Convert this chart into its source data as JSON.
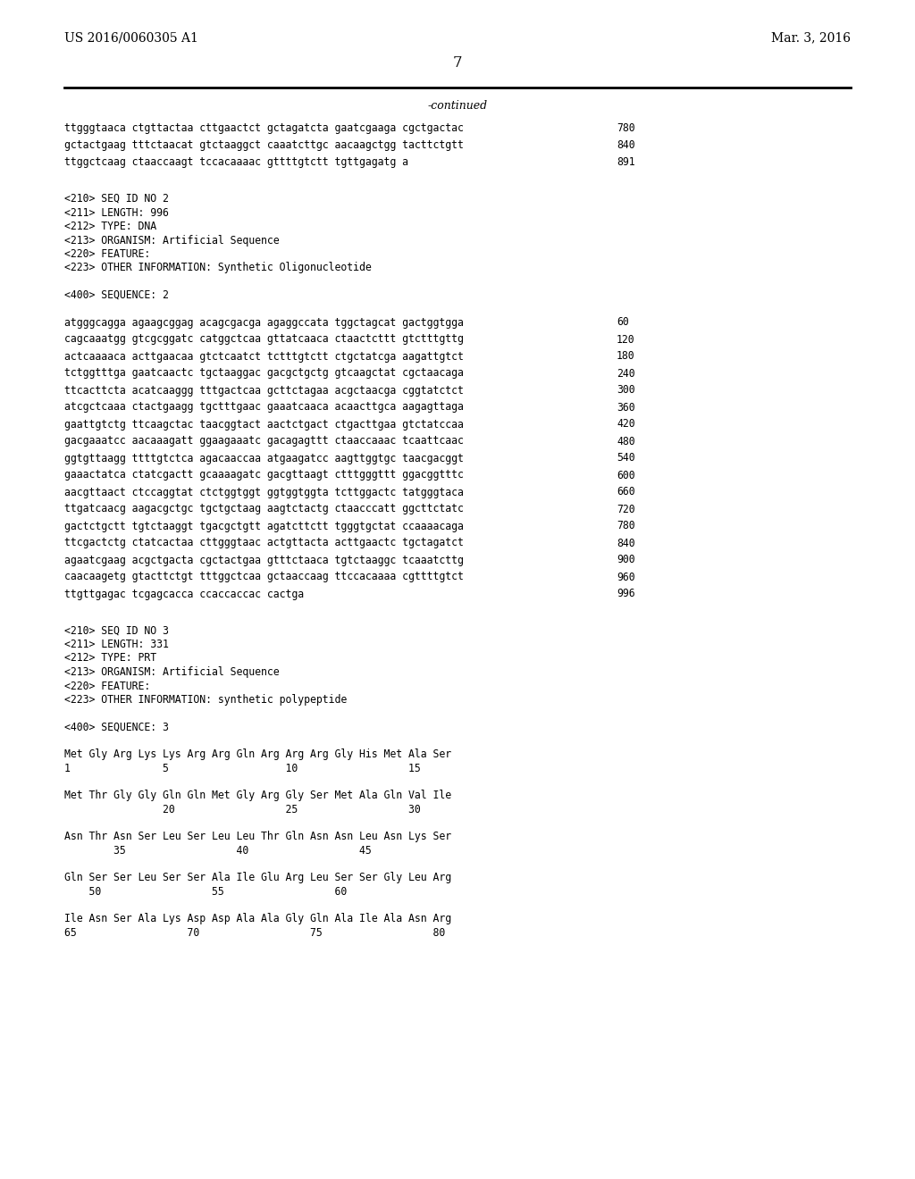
{
  "header_left": "US 2016/0060305 A1",
  "header_right": "Mar. 3, 2016",
  "page_number": "7",
  "continued_text": "-continued",
  "background_color": "#ffffff",
  "text_color": "#000000",
  "lines": [
    {
      "text": "ttgggtaaca ctgttactaa cttgaactct gctagatcta gaatcgaaga cgctgactac",
      "num": "780",
      "type": "seq"
    },
    {
      "text": "gctactgaag tttctaacat gtctaaggct caaatcttgc aacaagctgg tacttctgtt",
      "num": "840",
      "type": "seq"
    },
    {
      "text": "ttggctcaag ctaaccaagt tccacaaaac gttttgtctt tgttgagatg a",
      "num": "891",
      "type": "seq"
    },
    {
      "text": "",
      "num": "",
      "type": "blank2"
    },
    {
      "text": "<210> SEQ ID NO 2",
      "num": "",
      "type": "meta"
    },
    {
      "text": "<211> LENGTH: 996",
      "num": "",
      "type": "meta"
    },
    {
      "text": "<212> TYPE: DNA",
      "num": "",
      "type": "meta"
    },
    {
      "text": "<213> ORGANISM: Artificial Sequence",
      "num": "",
      "type": "meta"
    },
    {
      "text": "<220> FEATURE:",
      "num": "",
      "type": "meta"
    },
    {
      "text": "<223> OTHER INFORMATION: Synthetic Oligonucleotide",
      "num": "",
      "type": "meta"
    },
    {
      "text": "",
      "num": "",
      "type": "blank1"
    },
    {
      "text": "<400> SEQUENCE: 2",
      "num": "",
      "type": "meta"
    },
    {
      "text": "",
      "num": "",
      "type": "blank1"
    },
    {
      "text": "atgggcagga agaagcggag acagcgacga agaggccata tggctagcat gactggtgga",
      "num": "60",
      "type": "seq"
    },
    {
      "text": "cagcaaatgg gtcgcggatc catggctcaa gttatcaaca ctaactcttt gtctttgttg",
      "num": "120",
      "type": "seq"
    },
    {
      "text": "actcaaaaca acttgaacaa gtctcaatct tctttgtctt ctgctatcga aagattgtct",
      "num": "180",
      "type": "seq"
    },
    {
      "text": "tctggtttga gaatcaactc tgctaaggac gacgctgctg gtcaagctat cgctaacaga",
      "num": "240",
      "type": "seq"
    },
    {
      "text": "ttcacttcta acatcaaggg tttgactcaa gcttctagaa acgctaacga cggtatctct",
      "num": "300",
      "type": "seq"
    },
    {
      "text": "atcgctcaaa ctactgaagg tgctttgaac gaaatcaaca acaacttgca aagagttaga",
      "num": "360",
      "type": "seq"
    },
    {
      "text": "gaattgtctg ttcaagctac taacggtact aactctgact ctgacttgaa gtctatccaa",
      "num": "420",
      "type": "seq"
    },
    {
      "text": "gacgaaatcc aacaaagatt ggaagaaatc gacagagttt ctaaccaaac tcaattcaac",
      "num": "480",
      "type": "seq"
    },
    {
      "text": "ggtgttaagg ttttgtctca agacaaccaa atgaagatcc aagttggtgc taacgacggt",
      "num": "540",
      "type": "seq"
    },
    {
      "text": "gaaactatca ctatcgactt gcaaaagatc gacgttaagt ctttgggttt ggacggtttc",
      "num": "600",
      "type": "seq"
    },
    {
      "text": "aacgttaact ctccaggtat ctctggtggt ggtggtggta tcttggactc tatgggtaca",
      "num": "660",
      "type": "seq"
    },
    {
      "text": "ttgatcaacg aagacgctgc tgctgctaag aagtctactg ctaacccatt ggcttctatc",
      "num": "720",
      "type": "seq"
    },
    {
      "text": "gactctgctt tgtctaaggt tgacgctgtt agatcttctt tgggtgctat ccaaaacaga",
      "num": "780",
      "type": "seq"
    },
    {
      "text": "ttcgactctg ctatcactaa cttgggtaac actgttacta acttgaactc tgctagatct",
      "num": "840",
      "type": "seq"
    },
    {
      "text": "agaatcgaag acgctgacta cgctactgaa gtttctaaca tgtctaaggc tcaaatcttg",
      "num": "900",
      "type": "seq"
    },
    {
      "text": "caacaagetg gtacttctgt tttggctcaa gctaaccaag ttccacaaaa cgttttgtct",
      "num": "960",
      "type": "seq"
    },
    {
      "text": "ttgttgagac tcgagcacca ccaccaccac cactga",
      "num": "996",
      "type": "seq"
    },
    {
      "text": "",
      "num": "",
      "type": "blank2"
    },
    {
      "text": "<210> SEQ ID NO 3",
      "num": "",
      "type": "meta"
    },
    {
      "text": "<211> LENGTH: 331",
      "num": "",
      "type": "meta"
    },
    {
      "text": "<212> TYPE: PRT",
      "num": "",
      "type": "meta"
    },
    {
      "text": "<213> ORGANISM: Artificial Sequence",
      "num": "",
      "type": "meta"
    },
    {
      "text": "<220> FEATURE:",
      "num": "",
      "type": "meta"
    },
    {
      "text": "<223> OTHER INFORMATION: synthetic polypeptide",
      "num": "",
      "type": "meta"
    },
    {
      "text": "",
      "num": "",
      "type": "blank1"
    },
    {
      "text": "<400> SEQUENCE: 3",
      "num": "",
      "type": "meta"
    },
    {
      "text": "",
      "num": "",
      "type": "blank1"
    },
    {
      "text": "Met Gly Arg Lys Lys Arg Arg Gln Arg Arg Arg Gly His Met Ala Ser",
      "num": "",
      "type": "aa"
    },
    {
      "text": "1               5                   10                  15",
      "num": "",
      "type": "aapos"
    },
    {
      "text": "",
      "num": "",
      "type": "blank1"
    },
    {
      "text": "Met Thr Gly Gly Gln Gln Met Gly Arg Gly Ser Met Ala Gln Val Ile",
      "num": "",
      "type": "aa"
    },
    {
      "text": "                20                  25                  30",
      "num": "",
      "type": "aapos"
    },
    {
      "text": "",
      "num": "",
      "type": "blank1"
    },
    {
      "text": "Asn Thr Asn Ser Leu Ser Leu Leu Thr Gln Asn Asn Leu Asn Lys Ser",
      "num": "",
      "type": "aa"
    },
    {
      "text": "        35                  40                  45",
      "num": "",
      "type": "aapos"
    },
    {
      "text": "",
      "num": "",
      "type": "blank1"
    },
    {
      "text": "Gln Ser Ser Leu Ser Ser Ala Ile Glu Arg Leu Ser Ser Gly Leu Arg",
      "num": "",
      "type": "aa"
    },
    {
      "text": "    50                  55                  60",
      "num": "",
      "type": "aapos"
    },
    {
      "text": "",
      "num": "",
      "type": "blank1"
    },
    {
      "text": "Ile Asn Ser Ala Lys Asp Asp Ala Ala Gly Gln Ala Ile Ala Asn Arg",
      "num": "",
      "type": "aa"
    },
    {
      "text": "65                  70                  75                  80",
      "num": "",
      "type": "aapos"
    }
  ]
}
